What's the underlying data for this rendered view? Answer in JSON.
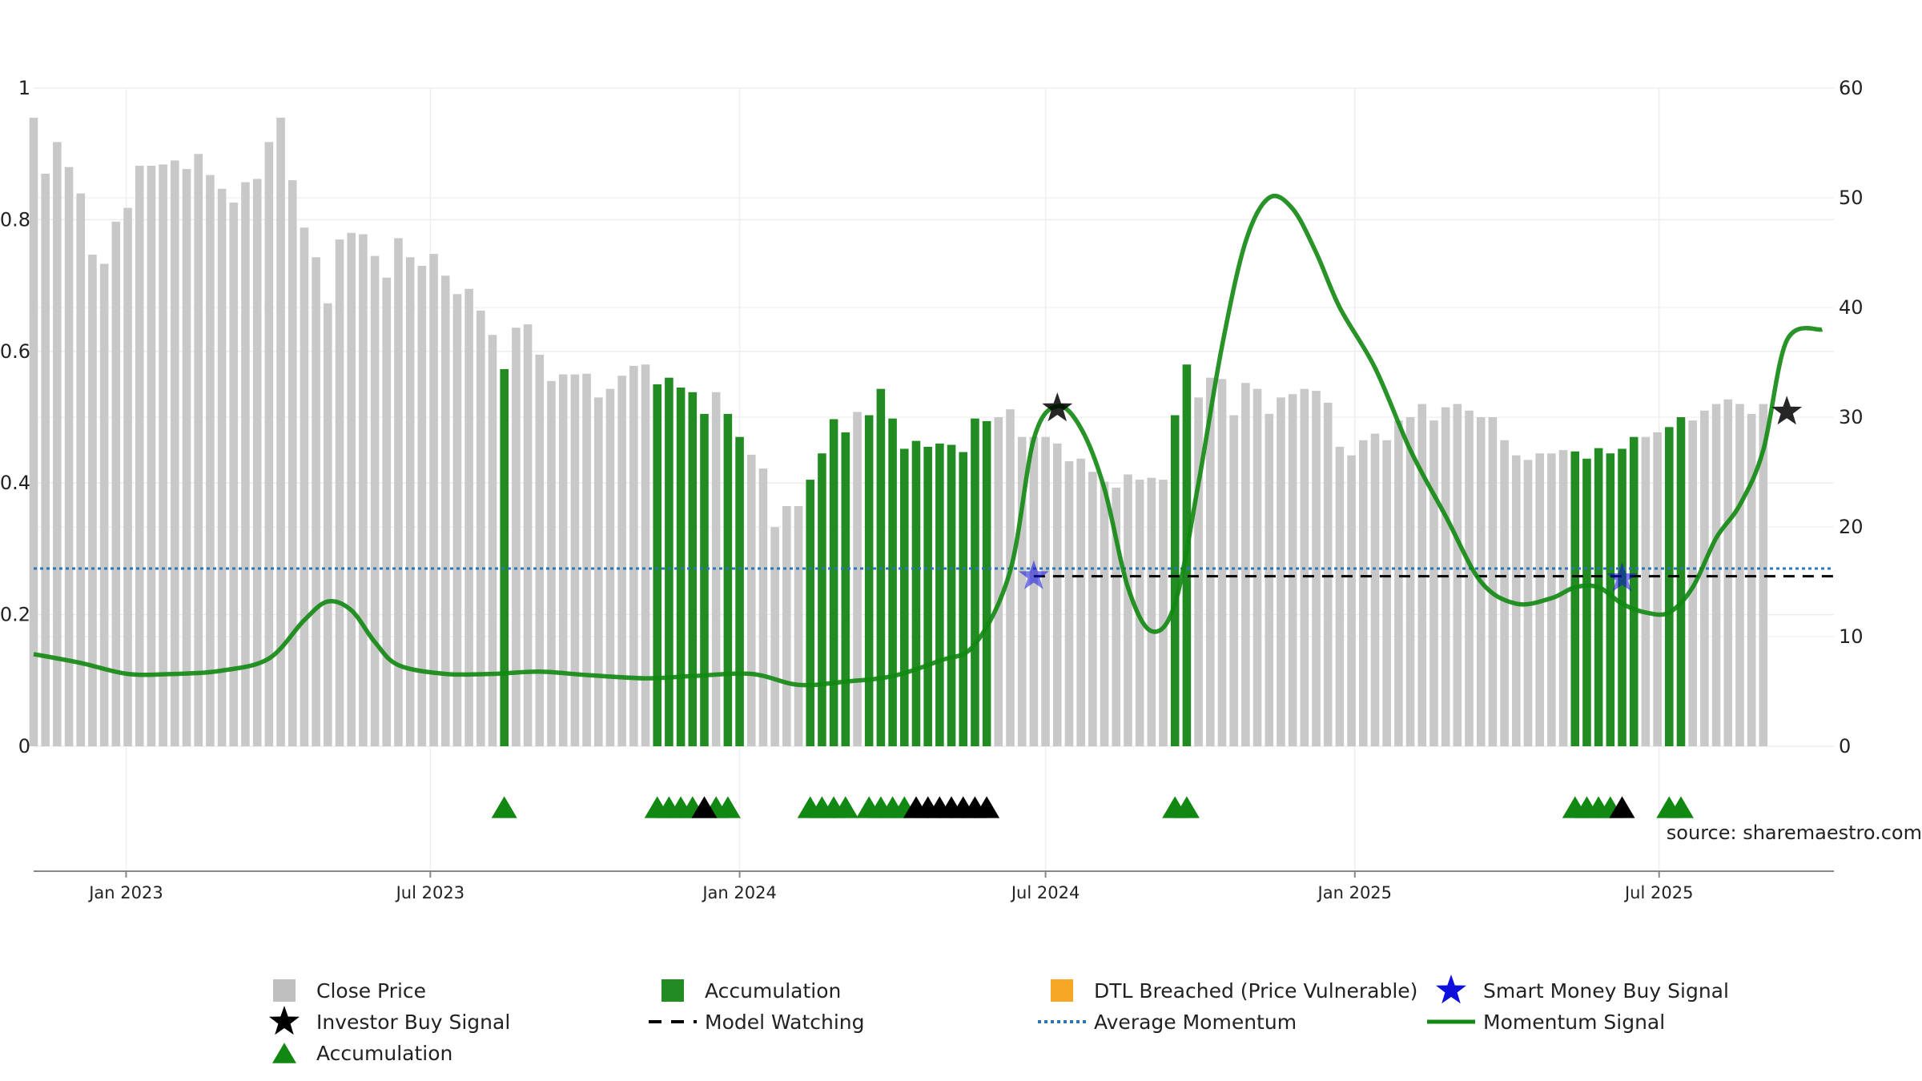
{
  "chart_data": {
    "type": "bar",
    "title": "",
    "source": "source: sharemaestro.com",
    "x_tick_labels": [
      {
        "date": "2023-01-01",
        "label": "Jan 2023"
      },
      {
        "date": "2023-07-01",
        "label": "Jul 2023"
      },
      {
        "date": "2024-01-01",
        "label": "Jan 2024"
      },
      {
        "date": "2024-07-01",
        "label": "Jul 2024"
      },
      {
        "date": "2025-01-01",
        "label": "Jan 2025"
      },
      {
        "date": "2025-07-01",
        "label": "Jul 2025"
      }
    ],
    "x_range": [
      "2022-11-07",
      "2025-10-13"
    ],
    "left_axis": {
      "range": [
        0,
        1
      ],
      "ticks": [
        0,
        0.2,
        0.4,
        0.6,
        0.8,
        1
      ],
      "tick_labels": [
        "0",
        "0.2",
        "0.4",
        "0.6",
        "0.8",
        "1"
      ]
    },
    "right_axis": {
      "range": [
        0,
        60
      ],
      "ticks": [
        0,
        10,
        20,
        30,
        40,
        50,
        60
      ],
      "tick_labels": [
        "0",
        "10",
        "20",
        "30",
        "40",
        "50",
        "60"
      ]
    },
    "grid": true,
    "weeks": {
      "start": "2022-11-07",
      "interval_days": 7,
      "close_price": [
        0.955,
        0.87,
        0.918,
        0.88,
        0.84,
        0.747,
        0.733,
        0.797,
        0.818,
        0.882,
        0.882,
        0.884,
        0.89,
        0.877,
        0.9,
        0.868,
        0.847,
        0.826,
        0.857,
        0.862,
        0.918,
        0.955,
        0.86,
        0.788,
        0.743,
        0.673,
        0.77,
        0.78,
        0.778,
        0.745,
        0.712,
        0.772,
        0.743,
        0.73,
        0.748,
        0.715,
        0.687,
        0.695,
        0.662,
        0.625,
        0.573,
        0.636,
        0.641,
        0.595,
        0.555,
        0.565,
        0.565,
        0.566,
        0.53,
        0.543,
        0.563,
        0.578,
        0.58,
        0.55,
        0.56,
        0.545,
        0.538,
        0.505,
        0.538,
        0.505,
        0.47,
        0.443,
        0.422,
        0.333,
        0.365,
        0.365,
        0.405,
        0.445,
        0.497,
        0.477,
        0.508,
        0.503,
        0.543,
        0.498,
        0.452,
        0.464,
        0.455,
        0.46,
        0.458,
        0.447,
        0.498,
        0.494,
        0.5,
        0.512,
        0.47,
        0.47,
        0.47,
        0.46,
        0.433,
        0.437,
        0.417,
        0.402,
        0.393,
        0.413,
        0.405,
        0.408,
        0.405,
        0.503,
        0.58,
        0.53,
        0.56,
        0.558,
        0.503,
        0.552,
        0.543,
        0.505,
        0.53,
        0.535,
        0.543,
        0.54,
        0.522,
        0.455,
        0.442,
        0.465,
        0.475,
        0.465,
        0.495,
        0.5,
        0.52,
        0.495,
        0.515,
        0.52,
        0.51,
        0.5,
        0.5,
        0.465,
        0.442,
        0.435,
        0.445,
        0.445,
        0.45,
        0.448,
        0.437,
        0.453,
        0.445,
        0.452,
        0.47,
        0.47,
        0.477,
        0.485,
        0.5,
        0.495,
        0.51,
        0.52,
        0.527,
        0.52,
        0.505,
        0.52
      ],
      "accumulation_weeks": [
        40,
        53,
        54,
        55,
        56,
        57,
        59,
        60,
        66,
        67,
        68,
        69,
        71,
        72,
        73,
        74,
        75,
        76,
        77,
        78,
        79,
        80,
        81,
        97,
        98,
        131,
        132,
        133,
        134,
        135,
        136,
        139,
        140
      ],
      "accumulation_triangles": [
        40,
        53,
        54,
        55,
        56,
        58,
        59,
        66,
        67,
        68,
        69,
        71,
        72,
        73,
        74,
        97,
        98,
        131,
        132,
        133,
        134,
        139,
        140
      ],
      "model_watching_triangles": [
        57,
        75,
        76,
        77,
        78,
        79,
        80,
        81,
        135
      ]
    },
    "momentum_signal": {
      "axis": "right",
      "x": [
        "2022-11-07",
        "2022-12-05",
        "2023-01-02",
        "2023-01-30",
        "2023-02-27",
        "2023-03-27",
        "2023-04-17",
        "2023-05-01",
        "2023-05-15",
        "2023-05-29",
        "2023-06-12",
        "2023-07-10",
        "2023-08-07",
        "2023-09-04",
        "2023-10-02",
        "2023-11-06",
        "2023-12-04",
        "2024-01-08",
        "2024-02-05",
        "2024-03-04",
        "2024-04-01",
        "2024-04-29",
        "2024-05-20",
        "2024-06-10",
        "2024-06-24",
        "2024-07-08",
        "2024-07-22",
        "2024-08-05",
        "2024-08-19",
        "2024-09-02",
        "2024-09-16",
        "2024-09-30",
        "2024-10-14",
        "2024-10-28",
        "2024-11-11",
        "2024-11-25",
        "2024-12-09",
        "2024-12-23",
        "2025-01-13",
        "2025-02-03",
        "2025-02-24",
        "2025-03-17",
        "2025-04-07",
        "2025-04-28",
        "2025-05-12",
        "2025-05-26",
        "2025-06-09",
        "2025-06-23",
        "2025-07-07",
        "2025-07-21",
        "2025-08-04",
        "2025-08-18",
        "2025-09-01",
        "2025-09-15",
        "2025-10-06"
      ],
      "y": [
        8.4,
        7.6,
        6.6,
        6.6,
        6.9,
        8,
        11.5,
        13.2,
        12.4,
        9.5,
        7.4,
        6.6,
        6.6,
        6.8,
        6.5,
        6.2,
        6.4,
        6.6,
        5.6,
        5.9,
        6.4,
        7.8,
        9.3,
        16,
        28,
        31,
        29,
        23.5,
        14.5,
        10.5,
        13,
        24,
        36.5,
        46,
        50,
        49,
        45,
        40,
        34.5,
        27,
        21,
        15,
        13,
        13.5,
        14.5,
        14.5,
        13,
        12.2,
        12.2,
        14.5,
        19,
        22,
        27,
        37,
        38
      ]
    },
    "average_momentum": 16.2,
    "model_watching_level": 15.5,
    "signals": [
      {
        "name": "Investor Buy Signal",
        "date": "2024-07-08",
        "value": 30.8
      },
      {
        "name": "Investor Buy Signal",
        "date": "2025-09-15",
        "value": 30.5
      },
      {
        "name": "Smart Money Buy Signal",
        "date": "2024-06-24",
        "value": 15.5
      },
      {
        "name": "Smart Money Buy Signal",
        "date": "2025-06-09",
        "value": 15.3
      }
    ],
    "legend": [
      {
        "label": "Close Price",
        "kind": "square",
        "color": "#bfbfbf"
      },
      {
        "label": "Accumulation",
        "kind": "square",
        "color": "#228b22"
      },
      {
        "label": "DTL Breached (Price Vulnerable)",
        "kind": "square",
        "color": "#f5a623"
      },
      {
        "label": "Smart Money Buy Signal",
        "kind": "star",
        "color": "#1010dd"
      },
      {
        "label": "Investor Buy Signal",
        "kind": "star",
        "color": "#000000"
      },
      {
        "label": "Model Watching",
        "kind": "dash",
        "color": "#000000"
      },
      {
        "label": "Average Momentum",
        "kind": "dot",
        "color": "#2e75b6"
      },
      {
        "label": "Momentum Signal",
        "kind": "line",
        "color": "#118811"
      },
      {
        "label": "Accumulation",
        "kind": "triangle",
        "color": "#118811"
      }
    ],
    "colors": {
      "close_price": "#c8c8c8",
      "accumulation": "#228b22",
      "momentum": "#118811",
      "average_momentum": "#2e75b6",
      "model_watching": "#000000",
      "smart_money": "#1010dd",
      "investor": "#000000",
      "source_text": "#999999"
    }
  }
}
